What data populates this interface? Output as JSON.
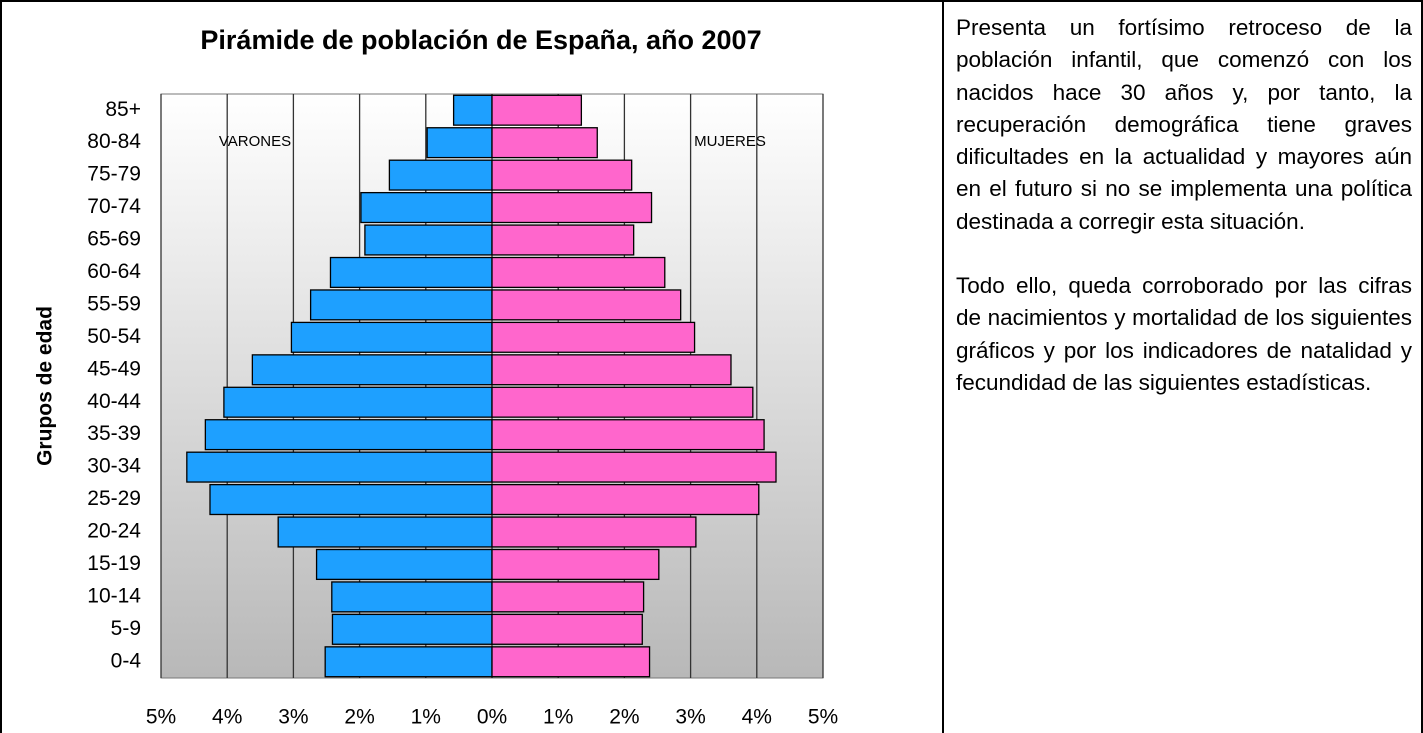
{
  "chart_data": {
    "type": "bar",
    "orientation": "horizontal",
    "title": "Pirámide de población de España, año 2007",
    "ylabel": "Grupos de edad",
    "categories": [
      "0-4",
      "5-9",
      "10-14",
      "15-19",
      "20-24",
      "25-29",
      "30-34",
      "35-39",
      "40-44",
      "45-49",
      "50-54",
      "55-59",
      "60-64",
      "65-69",
      "70-74",
      "75-79",
      "80-84",
      "85+"
    ],
    "series": [
      {
        "name": "VARONES",
        "color": "#1ea0ff",
        "values": [
          -2.52,
          -2.41,
          -2.42,
          -2.65,
          -3.23,
          -4.26,
          -4.61,
          -4.33,
          -4.05,
          -3.62,
          -3.03,
          -2.74,
          -2.44,
          -1.92,
          -1.98,
          -1.55,
          -0.98,
          -0.58
        ]
      },
      {
        "name": "MUJERES",
        "color": "#ff66cc",
        "values": [
          2.38,
          2.27,
          2.29,
          2.52,
          3.08,
          4.03,
          4.29,
          4.11,
          3.94,
          3.61,
          3.06,
          2.85,
          2.61,
          2.14,
          2.41,
          2.11,
          1.59,
          1.35
        ]
      }
    ],
    "xlim": [
      -5,
      5
    ],
    "xticks": [
      {
        "value": -5,
        "label": "5%"
      },
      {
        "value": -4,
        "label": "4%"
      },
      {
        "value": -3,
        "label": "3%"
      },
      {
        "value": -2,
        "label": "2%"
      },
      {
        "value": -1,
        "label": "1%"
      },
      {
        "value": 0,
        "label": "0%"
      },
      {
        "value": 1,
        "label": "1%"
      },
      {
        "value": 2,
        "label": "2%"
      },
      {
        "value": 3,
        "label": "3%"
      },
      {
        "value": 4,
        "label": "4%"
      },
      {
        "value": 5,
        "label": "5%"
      }
    ],
    "grid": true
  },
  "paragraphs": [
    "Presenta un fortísimo retroceso de la población infantil, que comenzó con los nacidos hace 30 años y, por tanto, la recuperación demográfica tiene graves dificultades en la actualidad y mayores aún en el futuro si no se implementa una política destinada a corregir esta situación.",
    "Todo ello, queda corroborado por las cifras de nacimientos y mortalidad de los siguientes gráficos y por los indicadores de natalidad y fecundidad de las siguientes estadísticas."
  ]
}
